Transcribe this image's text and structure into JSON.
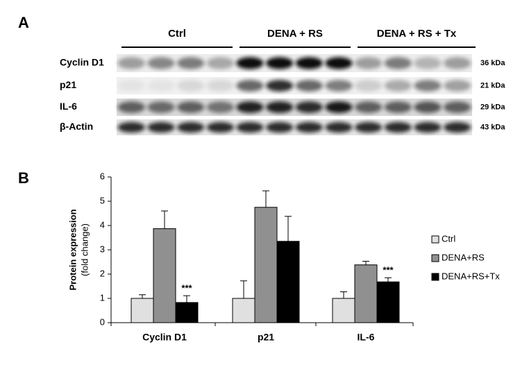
{
  "panel_a": {
    "label": "A",
    "groups": [
      "Ctrl",
      "DENA + RS",
      "DENA + RS + Tx"
    ],
    "rows": [
      {
        "protein": "Cyclin D1",
        "size": "36 kDa"
      },
      {
        "protein": "p21",
        "size": "21 kDa"
      },
      {
        "protein": "IL-6",
        "size": "29 kDa"
      },
      {
        "protein": "β-Actin",
        "size": "43 kDa"
      }
    ]
  },
  "chart_data": {
    "type": "bar",
    "panel_label": "B",
    "ylabel": "Protein expression",
    "ylabel_sub": "(fold change)",
    "categories": [
      "Cyclin D1",
      "p21",
      "IL-6"
    ],
    "series": [
      {
        "name": "Ctrl",
        "color": "#e0e0e0",
        "values": [
          1,
          1,
          1
        ],
        "errors": [
          0.15,
          0.72,
          0.27
        ]
      },
      {
        "name": "DENA+RS",
        "color": "#909090",
        "values": [
          3.87,
          4.75,
          2.38
        ],
        "errors": [
          0.73,
          0.68,
          0.15
        ]
      },
      {
        "name": "DENA+RS+Tx",
        "color": "#000000",
        "values": [
          0.83,
          3.35,
          1.68
        ],
        "errors": [
          0.28,
          1.03,
          0.17
        ],
        "annotations": [
          "***",
          null,
          "***"
        ]
      }
    ],
    "ylim": [
      0,
      6
    ],
    "yticks": [
      0,
      1,
      2,
      3,
      4,
      5,
      6
    ]
  }
}
